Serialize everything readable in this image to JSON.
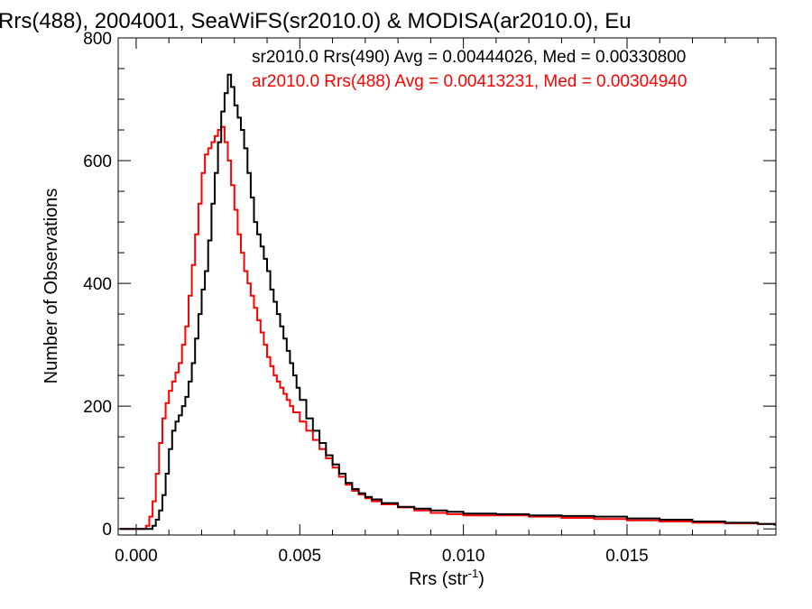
{
  "chart_data": {
    "type": "histogram",
    "title": "Rrs(488), 2004001, SeaWiFS(sr2010.0) & MODISA(ar2010.0), Eu",
    "xlabel": "Rrs (str",
    "xlabel_sup": "-1",
    "xlabel_close": ")",
    "ylabel": "Number of Observations",
    "xlim": [
      -0.00055,
      0.01955
    ],
    "ylim": [
      -10,
      800
    ],
    "x_ticks": [
      0.0,
      0.005,
      0.01,
      0.015
    ],
    "x_tick_labels": [
      "0.000",
      "0.005",
      "0.010",
      "0.015"
    ],
    "y_ticks": [
      0,
      200,
      400,
      600,
      800
    ],
    "y_tick_labels": [
      "0",
      "200",
      "400",
      "600",
      "800"
    ],
    "legend": [
      "sr2010.0 Rrs(490) Avg = 0.00444026, Med = 0.00330800",
      "ar2010.0 Rrs(488) Avg = 0.00413231, Med = 0.00304940"
    ],
    "series": [
      {
        "name": "sr2010.0 Rrs(490)",
        "color": "#000000",
        "points": [
          [
            -0.0005,
            0
          ],
          [
            0.0003,
            0
          ],
          [
            0.0005,
            5
          ],
          [
            0.0006,
            15
          ],
          [
            0.0007,
            30
          ],
          [
            0.0008,
            55
          ],
          [
            0.0009,
            90
          ],
          [
            0.001,
            130
          ],
          [
            0.0011,
            160
          ],
          [
            0.0012,
            175
          ],
          [
            0.0013,
            185
          ],
          [
            0.0014,
            200
          ],
          [
            0.0015,
            215
          ],
          [
            0.0016,
            240
          ],
          [
            0.0017,
            270
          ],
          [
            0.0018,
            310
          ],
          [
            0.0019,
            350
          ],
          [
            0.002,
            390
          ],
          [
            0.0021,
            420
          ],
          [
            0.0022,
            470
          ],
          [
            0.0023,
            530
          ],
          [
            0.0024,
            580
          ],
          [
            0.0025,
            630
          ],
          [
            0.0026,
            680
          ],
          [
            0.0027,
            710
          ],
          [
            0.0028,
            740
          ],
          [
            0.0029,
            720
          ],
          [
            0.003,
            690
          ],
          [
            0.0031,
            670
          ],
          [
            0.0032,
            650
          ],
          [
            0.0033,
            620
          ],
          [
            0.0034,
            580
          ],
          [
            0.0035,
            540
          ],
          [
            0.0036,
            500
          ],
          [
            0.0037,
            480
          ],
          [
            0.0038,
            460
          ],
          [
            0.0039,
            440
          ],
          [
            0.004,
            420
          ],
          [
            0.0041,
            390
          ],
          [
            0.0042,
            370
          ],
          [
            0.0043,
            350
          ],
          [
            0.0044,
            330
          ],
          [
            0.0045,
            310
          ],
          [
            0.0046,
            290
          ],
          [
            0.0047,
            270
          ],
          [
            0.0048,
            250
          ],
          [
            0.0049,
            230
          ],
          [
            0.005,
            210
          ],
          [
            0.0052,
            180
          ],
          [
            0.0054,
            160
          ],
          [
            0.0056,
            140
          ],
          [
            0.0058,
            120
          ],
          [
            0.006,
            105
          ],
          [
            0.0062,
            90
          ],
          [
            0.0064,
            75
          ],
          [
            0.0066,
            65
          ],
          [
            0.0068,
            58
          ],
          [
            0.007,
            52
          ],
          [
            0.0072,
            48
          ],
          [
            0.0075,
            42
          ],
          [
            0.008,
            36
          ],
          [
            0.0085,
            33
          ],
          [
            0.009,
            30
          ],
          [
            0.0095,
            28
          ],
          [
            0.01,
            25
          ],
          [
            0.011,
            24
          ],
          [
            0.012,
            22
          ],
          [
            0.013,
            21
          ],
          [
            0.014,
            20
          ],
          [
            0.015,
            17
          ],
          [
            0.016,
            15
          ],
          [
            0.017,
            12
          ],
          [
            0.018,
            10
          ],
          [
            0.019,
            8
          ],
          [
            0.0195,
            7
          ]
        ]
      },
      {
        "name": "ar2010.0 Rrs(488)",
        "color": "#ff0000",
        "points": [
          [
            -0.0005,
            0
          ],
          [
            0.0002,
            0
          ],
          [
            0.0003,
            5
          ],
          [
            0.0004,
            20
          ],
          [
            0.0005,
            45
          ],
          [
            0.0006,
            90
          ],
          [
            0.0007,
            140
          ],
          [
            0.0008,
            180
          ],
          [
            0.0009,
            205
          ],
          [
            0.001,
            225
          ],
          [
            0.0011,
            240
          ],
          [
            0.0012,
            255
          ],
          [
            0.0013,
            270
          ],
          [
            0.0014,
            300
          ],
          [
            0.0015,
            330
          ],
          [
            0.0016,
            380
          ],
          [
            0.0017,
            430
          ],
          [
            0.0018,
            480
          ],
          [
            0.0019,
            530
          ],
          [
            0.002,
            580
          ],
          [
            0.0021,
            610
          ],
          [
            0.0022,
            620
          ],
          [
            0.0023,
            630
          ],
          [
            0.0024,
            640
          ],
          [
            0.0025,
            650
          ],
          [
            0.0026,
            655
          ],
          [
            0.0027,
            630
          ],
          [
            0.0028,
            600
          ],
          [
            0.0029,
            560
          ],
          [
            0.003,
            520
          ],
          [
            0.0031,
            480
          ],
          [
            0.0032,
            450
          ],
          [
            0.0033,
            420
          ],
          [
            0.0034,
            400
          ],
          [
            0.0035,
            380
          ],
          [
            0.0036,
            360
          ],
          [
            0.0037,
            340
          ],
          [
            0.0038,
            320
          ],
          [
            0.0039,
            300
          ],
          [
            0.004,
            280
          ],
          [
            0.0041,
            265
          ],
          [
            0.0042,
            250
          ],
          [
            0.0043,
            240
          ],
          [
            0.0044,
            230
          ],
          [
            0.0045,
            220
          ],
          [
            0.0046,
            210
          ],
          [
            0.0047,
            200
          ],
          [
            0.0048,
            190
          ],
          [
            0.005,
            175
          ],
          [
            0.0052,
            160
          ],
          [
            0.0054,
            145
          ],
          [
            0.0056,
            130
          ],
          [
            0.0058,
            115
          ],
          [
            0.006,
            100
          ],
          [
            0.0062,
            85
          ],
          [
            0.0064,
            72
          ],
          [
            0.0066,
            62
          ],
          [
            0.0068,
            56
          ],
          [
            0.007,
            50
          ],
          [
            0.0072,
            45
          ],
          [
            0.0075,
            40
          ],
          [
            0.008,
            35
          ],
          [
            0.0085,
            30
          ],
          [
            0.009,
            26
          ],
          [
            0.0095,
            24
          ],
          [
            0.01,
            22
          ],
          [
            0.011,
            22
          ],
          [
            0.012,
            20
          ],
          [
            0.013,
            18
          ],
          [
            0.014,
            16
          ],
          [
            0.015,
            14
          ],
          [
            0.016,
            12
          ],
          [
            0.017,
            10
          ],
          [
            0.018,
            9
          ],
          [
            0.019,
            8
          ],
          [
            0.0195,
            7
          ]
        ]
      }
    ]
  }
}
